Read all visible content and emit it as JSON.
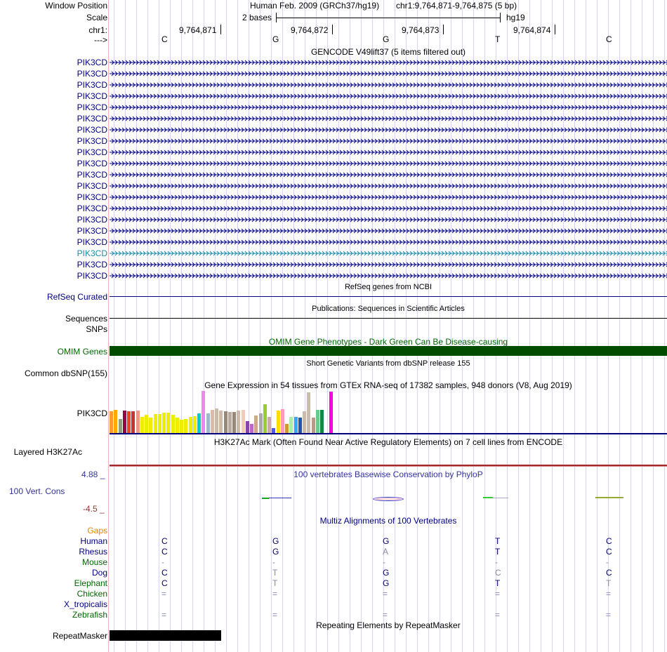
{
  "header": {
    "window_position_label": "Window Position",
    "assembly_text": "Human Feb. 2009 (GRCh37/hg19)",
    "position_text": "chr1:9,764,871-9,764,875 (5 bp)",
    "scale_label": "Scale",
    "scale_size": "2 bases",
    "scale_db": "hg19",
    "chrom_label": "chr1:",
    "strand_arrow": "--->",
    "positions": [
      "9,764,871",
      "9,764,872",
      "9,764,873",
      "9,764,874"
    ],
    "bases": [
      "C",
      "G",
      "G",
      "T",
      "C"
    ]
  },
  "gencode": {
    "title": "GENCODE V49lift37 (5 items filtered out)",
    "rows": [
      {
        "label": "PIK3CD",
        "color": "#000080"
      },
      {
        "label": "PIK3CD",
        "color": "#000080"
      },
      {
        "label": "PIK3CD",
        "color": "#000080"
      },
      {
        "label": "PIK3CD",
        "color": "#000080"
      },
      {
        "label": "PIK3CD",
        "color": "#000080"
      },
      {
        "label": "PIK3CD",
        "color": "#000080"
      },
      {
        "label": "PIK3CD",
        "color": "#000080"
      },
      {
        "label": "PIK3CD",
        "color": "#000080"
      },
      {
        "label": "PIK3CD",
        "color": "#000080"
      },
      {
        "label": "PIK3CD",
        "color": "#000080"
      },
      {
        "label": "PIK3CD",
        "color": "#000080"
      },
      {
        "label": "PIK3CD",
        "color": "#000080"
      },
      {
        "label": "PIK3CD",
        "color": "#000080"
      },
      {
        "label": "PIK3CD",
        "color": "#000080"
      },
      {
        "label": "PIK3CD",
        "color": "#000080"
      },
      {
        "label": "PIK3CD",
        "color": "#000080"
      },
      {
        "label": "PIK3CD",
        "color": "#000080"
      },
      {
        "label": "PIK3CD",
        "color": "#1a8aa8"
      },
      {
        "label": "PIK3CD",
        "color": "#000080"
      },
      {
        "label": "PIK3CD",
        "color": "#000080"
      }
    ]
  },
  "refseq": {
    "title": "RefSeq genes from NCBI",
    "label": "RefSeq Curated"
  },
  "publications": {
    "title": "Publications: Sequences in Scientific Articles",
    "label": "Sequences"
  },
  "snps": {
    "label": "SNPs"
  },
  "omim": {
    "title": "OMIM Gene Phenotypes - Dark Green Can Be Disease-causing",
    "label": "OMIM Genes",
    "color": "#004d00"
  },
  "dbsnp": {
    "title": "Short Genetic Variants from dbSNP release 155",
    "label": "Common dbSNP(155)"
  },
  "gtex": {
    "title": "Gene Expression in 54 tissues from GTEx RNA-seq of 17382 samples, 948 donors (V8, Aug 2019)",
    "label": "PIK3CD",
    "bars": [
      {
        "c": "#ff9a33",
        "v": 0.52
      },
      {
        "c": "#ffaa00",
        "v": 0.55
      },
      {
        "c": "#8aa47a",
        "v": 0.33
      },
      {
        "c": "#990044",
        "v": 0.53
      },
      {
        "c": "#ee4422",
        "v": 0.52
      },
      {
        "c": "#cc3333",
        "v": 0.52
      },
      {
        "c": "#ee9988",
        "v": 0.53
      },
      {
        "c": "#eeee00",
        "v": 0.38
      },
      {
        "c": "#eeee00",
        "v": 0.43
      },
      {
        "c": "#eeee00",
        "v": 0.36
      },
      {
        "c": "#eeee00",
        "v": 0.45
      },
      {
        "c": "#eeee00",
        "v": 0.45
      },
      {
        "c": "#eeee00",
        "v": 0.48
      },
      {
        "c": "#eeee00",
        "v": 0.48
      },
      {
        "c": "#eeee00",
        "v": 0.44
      },
      {
        "c": "#eeee00",
        "v": 0.36
      },
      {
        "c": "#eeee00",
        "v": 0.31
      },
      {
        "c": "#eeee00",
        "v": 0.34
      },
      {
        "c": "#eeee00",
        "v": 0.39
      },
      {
        "c": "#eeee00",
        "v": 0.4
      },
      {
        "c": "#00cccc",
        "v": 0.47
      },
      {
        "c": "#ee88ee",
        "v": 1.0
      },
      {
        "c": "#99bbcc",
        "v": 0.47
      },
      {
        "c": "#ddbbaa",
        "v": 0.55
      },
      {
        "c": "#ccbbaa",
        "v": 0.58
      },
      {
        "c": "#ccbbaa",
        "v": 0.53
      },
      {
        "c": "#998877",
        "v": 0.52
      },
      {
        "c": "#bbaa99",
        "v": 0.5
      },
      {
        "c": "#998877",
        "v": 0.5
      },
      {
        "c": "#ccbbaa",
        "v": 0.53
      },
      {
        "c": "#eeccbb",
        "v": 0.55
      },
      {
        "c": "#8844aa",
        "v": 0.28
      },
      {
        "c": "#bb66cc",
        "v": 0.21
      },
      {
        "c": "#ccaa88",
        "v": 0.41
      },
      {
        "c": "#aaaaaa",
        "v": 0.47
      },
      {
        "c": "#99cc33",
        "v": 0.69
      },
      {
        "c": "#ccaaaa",
        "v": 0.38
      },
      {
        "c": "#5555ff",
        "v": 0.12
      },
      {
        "c": "#ffdd00",
        "v": 0.53
      },
      {
        "c": "#ff99bb",
        "v": 0.57
      },
      {
        "c": "#cc9933",
        "v": 0.22
      },
      {
        "c": "#aaeeaa",
        "v": 0.38
      },
      {
        "c": "#33aaff",
        "v": 0.38
      },
      {
        "c": "#2255aa",
        "v": 0.36
      },
      {
        "c": "#ccbbaa",
        "v": 0.52
      },
      {
        "c": "#ccbbaa",
        "v": 0.97
      },
      {
        "c": "#bb9988",
        "v": 0.36
      },
      {
        "c": "#66cc88",
        "v": 0.55
      },
      {
        "c": "#118844",
        "v": 0.55
      },
      {
        "c": "#ffffff",
        "v": 0.0
      },
      {
        "c": "#ff00dd",
        "v": 0.98
      }
    ]
  },
  "h3k27ac": {
    "title": "H3K27Ac Mark (Often Found Near Active Regulatory Elements) on 7 cell lines from ENCODE",
    "label": "Layered H3K27Ac"
  },
  "phylop": {
    "title": "100 vertebrates Basewise Conservation by PhyloP",
    "label": "100 Vert. Cons",
    "max": "4.88 _",
    "min": "-4.5 _"
  },
  "multiz": {
    "title": "Multiz Alignments of 100 Vertebrates",
    "gaps_label": "Gaps",
    "species": [
      {
        "name": "Human",
        "color": "#000080",
        "bases": [
          "C",
          "G",
          "G",
          "T",
          "C"
        ],
        "bcolor": "#000066"
      },
      {
        "name": "Rhesus",
        "color": "#000080",
        "bases": [
          "C",
          "G",
          "A",
          "T",
          "C"
        ],
        "bcolor": "#000066"
      },
      {
        "name": "Mouse",
        "color": "#006600",
        "bases": [
          "-",
          "-",
          "-",
          "-",
          "-"
        ],
        "bcolor": "#8888aa"
      },
      {
        "name": "Dog",
        "color": "#000080",
        "bases": [
          "C",
          "T",
          "G",
          "C",
          "C"
        ],
        "bcolor": "#000066"
      },
      {
        "name": "Elephant",
        "color": "#006600",
        "bases": [
          "C",
          "T",
          "G",
          "T",
          "T"
        ],
        "bcolor": "#000066"
      },
      {
        "name": "Chicken",
        "color": "#006600",
        "bases": [
          "=",
          "=",
          "=",
          "=",
          "="
        ],
        "bcolor": "#8888bb"
      },
      {
        "name": "X_tropicalis",
        "color": "#000080",
        "bases": [
          "",
          "",
          "",
          "",
          ""
        ],
        "bcolor": "#8888bb"
      },
      {
        "name": "Zebrafish",
        "color": "#006600",
        "bases": [
          "=",
          "=",
          "=",
          "=",
          "="
        ],
        "bcolor": "#8888bb"
      }
    ]
  },
  "repeatmasker": {
    "title": "Repeating Elements by RepeatMasker",
    "label": "RepeatMasker"
  }
}
